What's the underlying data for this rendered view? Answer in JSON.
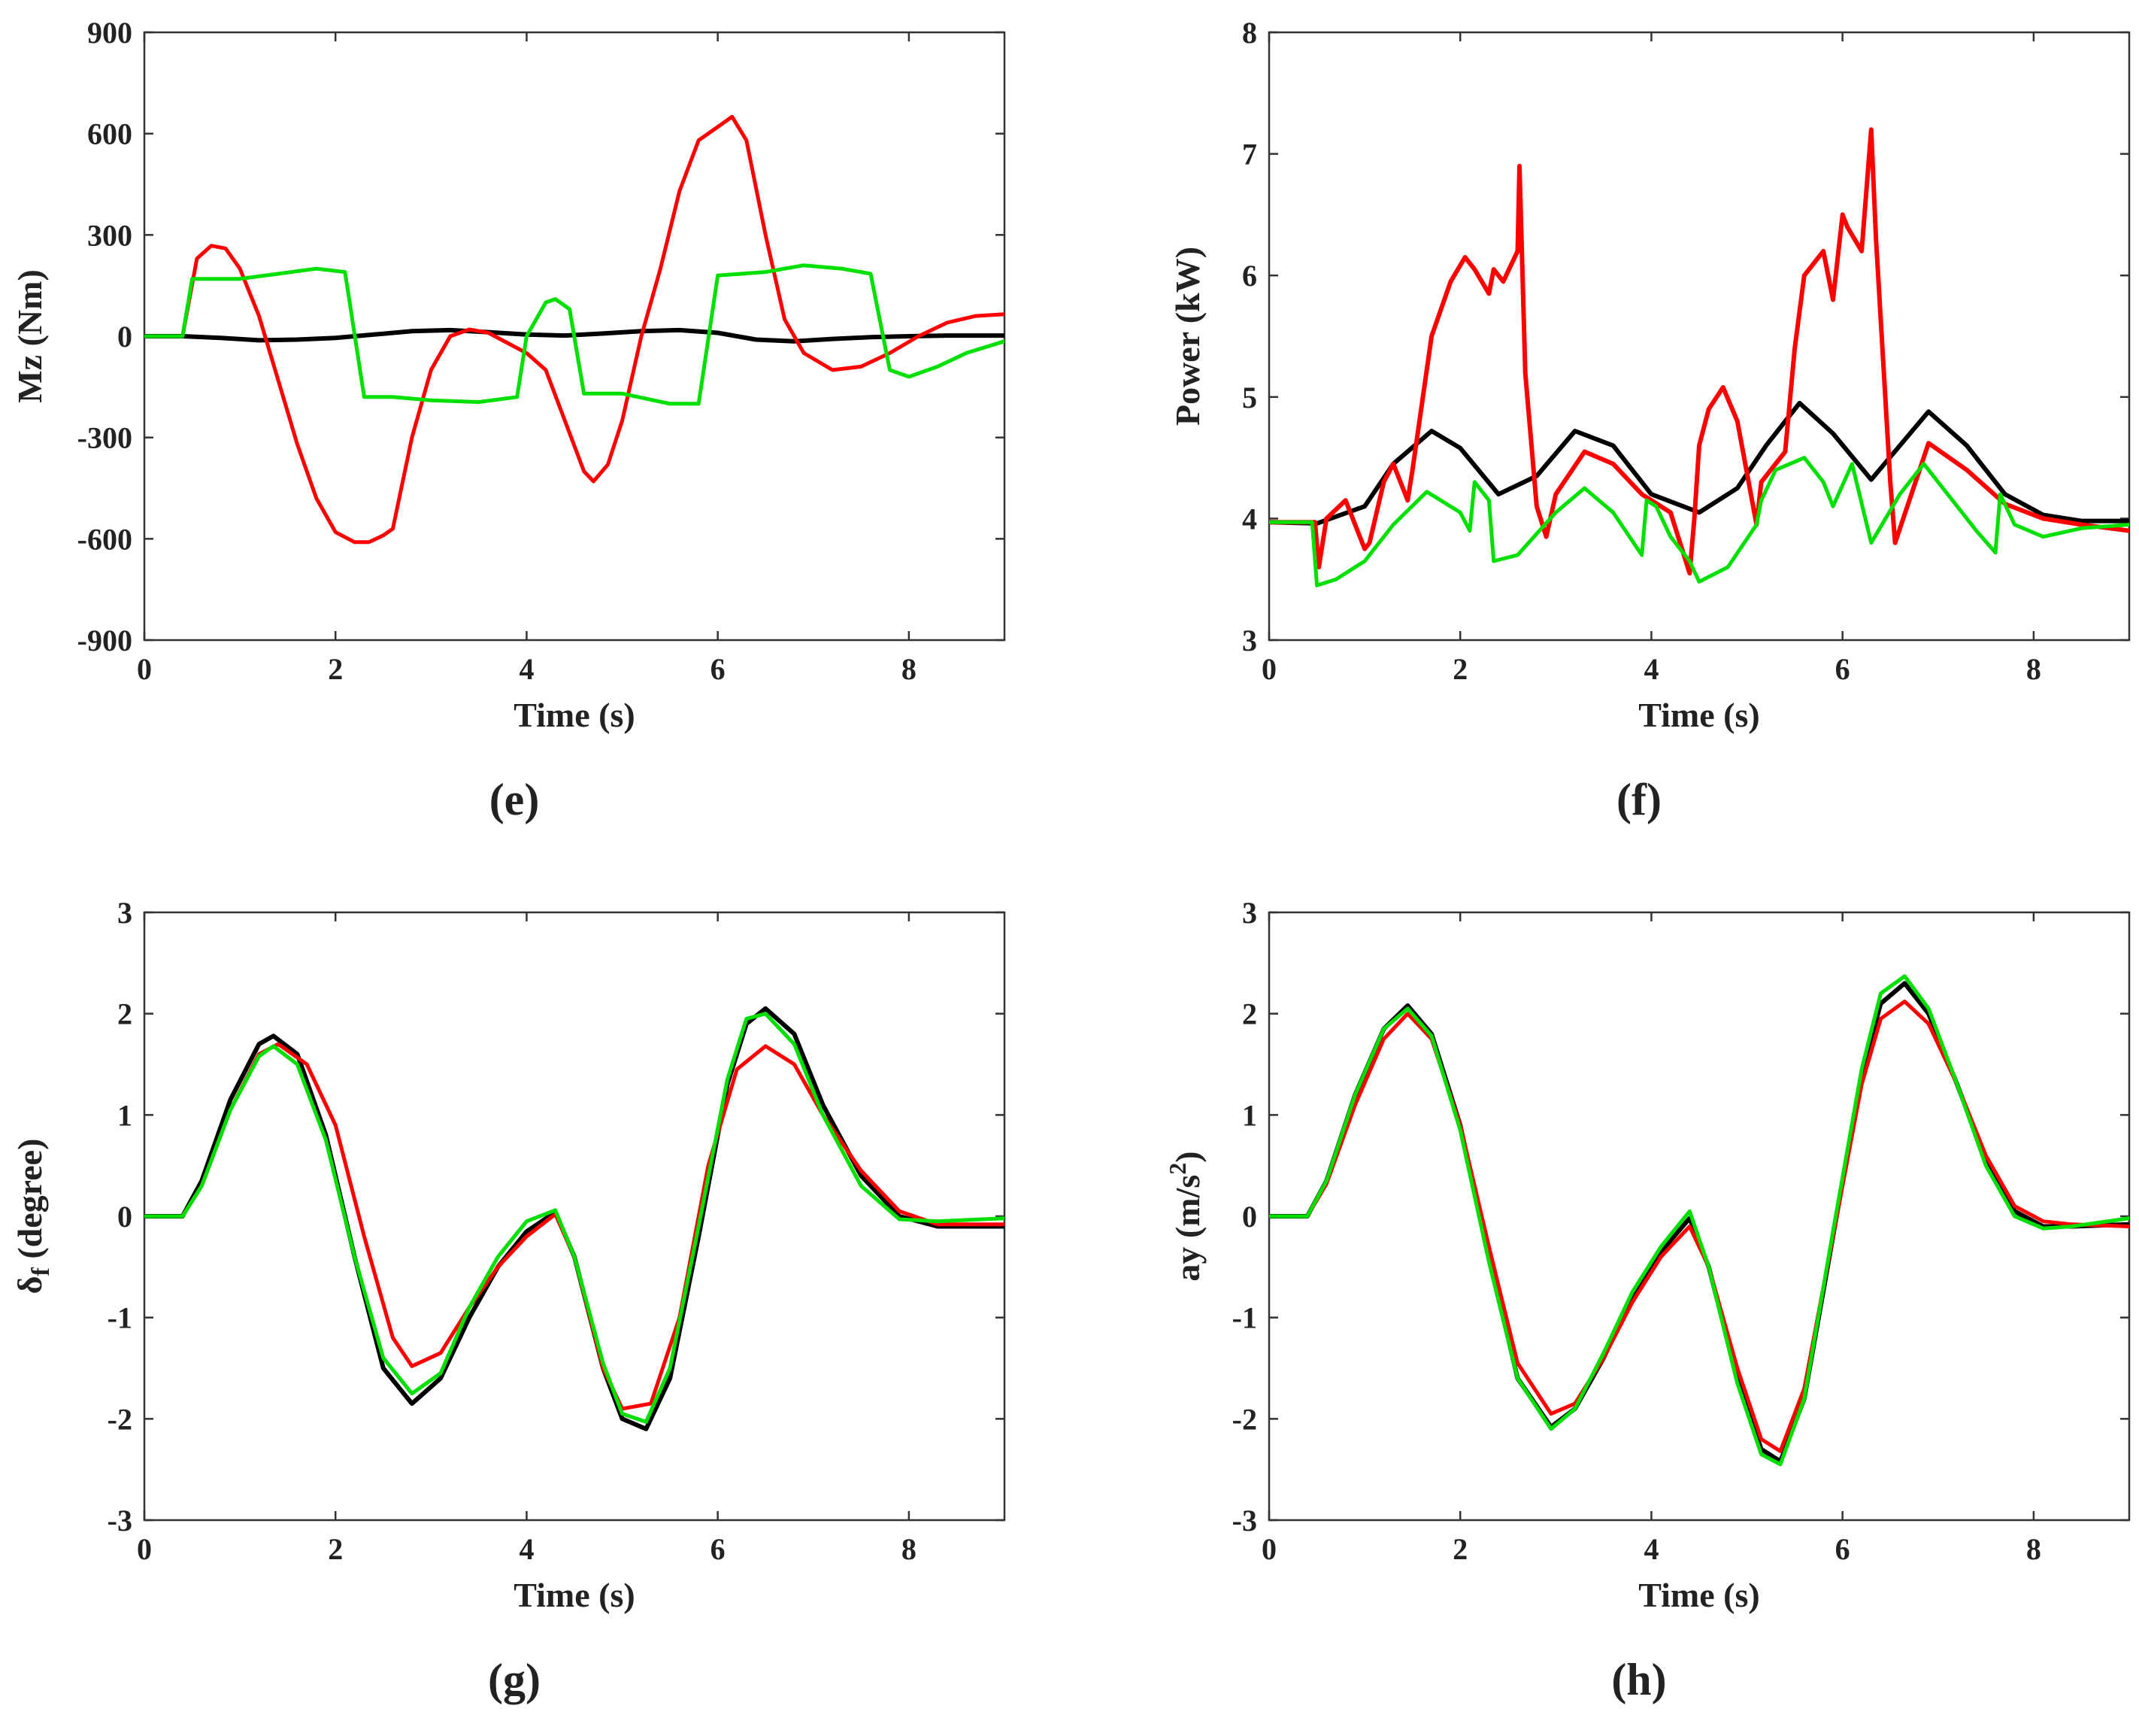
{
  "colors": {
    "black": "#000000",
    "red": "#ff0000",
    "green": "#00e000",
    "axis": "#333333"
  },
  "chart_data": [
    {
      "id": "e",
      "type": "line",
      "caption": "(e)",
      "xlabel": "Time (s)",
      "ylabel": "Mz (Nm)",
      "ylabel_sub": "",
      "ylabel_tail": "",
      "xlim": [
        0,
        9
      ],
      "ylim": [
        -900,
        900
      ],
      "xticks": [
        0,
        2,
        4,
        6,
        8
      ],
      "yticks": [
        -900,
        -600,
        -300,
        0,
        300,
        600,
        900
      ],
      "grid": false,
      "series": [
        {
          "color": "#000000",
          "width": 6,
          "x": [
            0,
            0.4,
            0.8,
            1.2,
            1.6,
            2,
            2.4,
            2.8,
            3.2,
            3.6,
            4,
            4.4,
            4.8,
            5.2,
            5.6,
            6,
            6.4,
            6.8,
            7.2,
            7.6,
            8,
            8.4,
            9
          ],
          "y": [
            0,
            0,
            -5,
            -12,
            -10,
            -5,
            5,
            15,
            18,
            12,
            5,
            2,
            8,
            15,
            18,
            10,
            -10,
            -15,
            -8,
            -3,
            0,
            2,
            2
          ]
        },
        {
          "color": "#ff0000",
          "width": 5,
          "x": [
            0,
            0.4,
            0.55,
            0.7,
            0.85,
            1.0,
            1.2,
            1.4,
            1.6,
            1.8,
            2.0,
            2.2,
            2.35,
            2.5,
            2.6,
            2.8,
            3.0,
            3.2,
            3.4,
            3.6,
            3.8,
            4.0,
            4.2,
            4.4,
            4.6,
            4.7,
            4.85,
            5.0,
            5.2,
            5.4,
            5.6,
            5.8,
            6.0,
            6.15,
            6.3,
            6.5,
            6.7,
            6.9,
            7.2,
            7.5,
            7.8,
            8.1,
            8.4,
            8.7,
            9.0
          ],
          "y": [
            0,
            0,
            230,
            268,
            260,
            200,
            60,
            -130,
            -320,
            -480,
            -580,
            -610,
            -610,
            -590,
            -570,
            -300,
            -100,
            0,
            20,
            10,
            -20,
            -50,
            -100,
            -250,
            -400,
            -430,
            -380,
            -250,
            0,
            200,
            430,
            580,
            620,
            650,
            580,
            300,
            50,
            -50,
            -100,
            -90,
            -50,
            0,
            40,
            60,
            65
          ]
        },
        {
          "color": "#00e000",
          "width": 5,
          "x": [
            0,
            0.4,
            0.5,
            1.0,
            1.4,
            1.8,
            2.1,
            2.3,
            2.6,
            3.0,
            3.5,
            3.9,
            4.0,
            4.2,
            4.3,
            4.45,
            4.6,
            5.0,
            5.5,
            5.8,
            6.0,
            6.5,
            6.9,
            7.3,
            7.6,
            7.8,
            8.0,
            8.3,
            8.6,
            9.0
          ],
          "y": [
            0,
            0,
            170,
            170,
            185,
            200,
            190,
            -180,
            -180,
            -190,
            -195,
            -180,
            0,
            100,
            110,
            80,
            -170,
            -170,
            -200,
            -200,
            180,
            190,
            210,
            200,
            185,
            -100,
            -120,
            -90,
            -50,
            -15
          ]
        }
      ]
    },
    {
      "id": "f",
      "type": "line",
      "caption": "(f)",
      "xlabel": "Time (s)",
      "ylabel": "Power (kW)",
      "ylabel_sub": "",
      "ylabel_tail": "",
      "xlim": [
        0,
        9
      ],
      "ylim": [
        3,
        8
      ],
      "xticks": [
        0,
        2,
        4,
        6,
        8
      ],
      "yticks": [
        3,
        4,
        5,
        6,
        7,
        8
      ],
      "grid": false,
      "series": [
        {
          "color": "#000000",
          "width": 6,
          "x": [
            0,
            0.5,
            1.0,
            1.3,
            1.7,
            2.0,
            2.4,
            2.8,
            3.2,
            3.6,
            4.0,
            4.5,
            4.9,
            5.2,
            5.55,
            5.9,
            6.3,
            6.6,
            6.9,
            7.3,
            7.7,
            8.1,
            8.5,
            9.0
          ],
          "y": [
            3.97,
            3.96,
            4.1,
            4.45,
            4.72,
            4.58,
            4.2,
            4.35,
            4.72,
            4.6,
            4.2,
            4.05,
            4.25,
            4.6,
            4.95,
            4.7,
            4.32,
            4.6,
            4.88,
            4.6,
            4.2,
            4.03,
            3.98,
            3.98
          ]
        },
        {
          "color": "#ff0000",
          "width": 6,
          "x": [
            0,
            0.48,
            0.52,
            0.6,
            0.8,
            1.0,
            1.05,
            1.2,
            1.3,
            1.45,
            1.5,
            1.7,
            1.9,
            2.05,
            2.15,
            2.3,
            2.35,
            2.45,
            2.6,
            2.62,
            2.68,
            2.8,
            2.9,
            3.0,
            3.3,
            3.6,
            3.9,
            4.2,
            4.4,
            4.45,
            4.5,
            4.6,
            4.75,
            4.9,
            5.1,
            5.15,
            5.4,
            5.5,
            5.6,
            5.8,
            5.9,
            6.0,
            6.05,
            6.2,
            6.3,
            6.35,
            6.5,
            6.55,
            6.9,
            7.3,
            7.7,
            8.1,
            8.5,
            9.0
          ],
          "y": [
            3.97,
            3.97,
            3.6,
            4.0,
            4.15,
            3.75,
            3.8,
            4.3,
            4.45,
            4.15,
            4.4,
            5.5,
            5.95,
            6.15,
            6.05,
            5.85,
            6.05,
            5.95,
            6.2,
            6.9,
            5.2,
            4.1,
            3.85,
            4.2,
            4.55,
            4.45,
            4.2,
            4.05,
            3.55,
            4.0,
            4.6,
            4.9,
            5.08,
            4.8,
            3.95,
            4.3,
            4.55,
            5.4,
            6.0,
            6.2,
            5.8,
            6.5,
            6.4,
            6.2,
            7.2,
            6.3,
            4.3,
            3.8,
            4.62,
            4.4,
            4.12,
            4.0,
            3.95,
            3.9
          ]
        },
        {
          "color": "#00e000",
          "width": 5,
          "x": [
            0,
            0.45,
            0.5,
            0.7,
            1.0,
            1.3,
            1.65,
            2.0,
            2.1,
            2.15,
            2.3,
            2.35,
            2.6,
            3.0,
            3.3,
            3.6,
            3.9,
            3.95,
            4.05,
            4.2,
            4.4,
            4.5,
            4.8,
            5.1,
            5.15,
            5.3,
            5.6,
            5.8,
            5.9,
            6.1,
            6.3,
            6.6,
            6.85,
            7.1,
            7.4,
            7.6,
            7.65,
            7.8,
            8.1,
            8.5,
            9.0
          ],
          "y": [
            3.97,
            3.97,
            3.45,
            3.5,
            3.65,
            3.95,
            4.22,
            4.05,
            3.9,
            4.3,
            4.15,
            3.65,
            3.7,
            4.05,
            4.25,
            4.05,
            3.7,
            4.15,
            4.1,
            3.85,
            3.65,
            3.48,
            3.6,
            3.95,
            4.15,
            4.4,
            4.5,
            4.3,
            4.1,
            4.45,
            3.8,
            4.2,
            4.45,
            4.2,
            3.9,
            3.72,
            4.2,
            3.95,
            3.85,
            3.92,
            3.95
          ]
        }
      ]
    },
    {
      "id": "g",
      "type": "line",
      "caption": "(g)",
      "xlabel": "Time (s)",
      "ylabel": "δ",
      "ylabel_sub": "f",
      "ylabel_tail": " (degree)",
      "xlim": [
        0,
        9
      ],
      "ylim": [
        -3,
        3
      ],
      "xticks": [
        0,
        2,
        4,
        6,
        8
      ],
      "yticks": [
        -3,
        -2,
        -1,
        0,
        1,
        2,
        3
      ],
      "grid": false,
      "series": [
        {
          "color": "#000000",
          "width": 6,
          "x": [
            0,
            0.4,
            0.6,
            0.9,
            1.2,
            1.35,
            1.6,
            1.9,
            2.2,
            2.5,
            2.8,
            3.1,
            3.4,
            3.7,
            4.0,
            4.3,
            4.5,
            4.8,
            5.0,
            5.25,
            5.5,
            5.8,
            6.1,
            6.3,
            6.5,
            6.8,
            7.1,
            7.5,
            7.9,
            8.3,
            9.0
          ],
          "y": [
            0,
            0,
            0.35,
            1.15,
            1.7,
            1.78,
            1.6,
            0.8,
            -0.4,
            -1.5,
            -1.85,
            -1.6,
            -1.0,
            -0.5,
            -0.15,
            0.04,
            -0.4,
            -1.5,
            -2.0,
            -2.1,
            -1.6,
            -0.2,
            1.3,
            1.9,
            2.05,
            1.8,
            1.1,
            0.4,
            0.0,
            -0.1,
            -0.1
          ]
        },
        {
          "color": "#ff0000",
          "width": 5,
          "x": [
            0,
            0.4,
            0.6,
            0.9,
            1.2,
            1.4,
            1.7,
            2.0,
            2.3,
            2.6,
            2.8,
            3.1,
            3.4,
            3.7,
            4.0,
            4.3,
            4.5,
            4.8,
            5.0,
            5.3,
            5.6,
            5.9,
            6.2,
            6.5,
            6.8,
            7.1,
            7.5,
            7.9,
            8.3,
            9.0
          ],
          "y": [
            0,
            0,
            0.3,
            1.05,
            1.6,
            1.7,
            1.5,
            0.9,
            -0.2,
            -1.2,
            -1.48,
            -1.35,
            -0.9,
            -0.5,
            -0.2,
            0.02,
            -0.4,
            -1.5,
            -1.9,
            -1.85,
            -1.0,
            0.5,
            1.45,
            1.68,
            1.5,
            1.0,
            0.45,
            0.05,
            -0.08,
            -0.08
          ]
        },
        {
          "color": "#00e000",
          "width": 5,
          "x": [
            0,
            0.4,
            0.6,
            0.9,
            1.2,
            1.35,
            1.6,
            1.9,
            2.2,
            2.5,
            2.8,
            3.1,
            3.4,
            3.7,
            4.0,
            4.3,
            4.5,
            4.8,
            5.0,
            5.25,
            5.5,
            5.8,
            6.1,
            6.3,
            6.5,
            6.8,
            7.1,
            7.5,
            7.9,
            8.3,
            9.0
          ],
          "y": [
            0,
            0,
            0.3,
            1.05,
            1.58,
            1.68,
            1.5,
            0.75,
            -0.4,
            -1.4,
            -1.75,
            -1.55,
            -0.9,
            -0.4,
            -0.05,
            0.06,
            -0.4,
            -1.45,
            -1.95,
            -2.03,
            -1.5,
            -0.1,
            1.35,
            1.95,
            2.0,
            1.7,
            1.0,
            0.3,
            -0.03,
            -0.05,
            -0.02
          ]
        }
      ]
    },
    {
      "id": "h",
      "type": "line",
      "caption": "(h)",
      "xlabel": "Time (s)",
      "ylabel": "ay (m/s",
      "ylabel_sub": "",
      "ylabel_sup": "2",
      "ylabel_tail": ")",
      "xlim": [
        0,
        9
      ],
      "ylim": [
        -3,
        3
      ],
      "xticks": [
        0,
        2,
        4,
        6,
        8
      ],
      "yticks": [
        -3,
        -2,
        -1,
        0,
        1,
        2,
        3
      ],
      "grid": false,
      "series": [
        {
          "color": "#000000",
          "width": 6,
          "x": [
            0,
            0.4,
            0.6,
            0.9,
            1.2,
            1.45,
            1.7,
            2.0,
            2.3,
            2.6,
            2.95,
            3.2,
            3.5,
            3.8,
            4.1,
            4.4,
            4.6,
            4.9,
            5.15,
            5.35,
            5.6,
            5.9,
            6.2,
            6.4,
            6.65,
            6.9,
            7.2,
            7.5,
            7.8,
            8.1,
            8.4,
            9.0
          ],
          "y": [
            0,
            0,
            0.35,
            1.2,
            1.85,
            2.08,
            1.8,
            0.9,
            -0.4,
            -1.6,
            -2.08,
            -1.9,
            -1.4,
            -0.8,
            -0.35,
            -0.02,
            -0.5,
            -1.6,
            -2.3,
            -2.42,
            -1.8,
            -0.2,
            1.4,
            2.1,
            2.3,
            2.0,
            1.3,
            0.55,
            0.05,
            -0.1,
            -0.1,
            -0.08
          ]
        },
        {
          "color": "#ff0000",
          "width": 5,
          "x": [
            0,
            0.4,
            0.6,
            0.9,
            1.2,
            1.45,
            1.7,
            2.0,
            2.3,
            2.6,
            2.95,
            3.2,
            3.5,
            3.8,
            4.1,
            4.4,
            4.6,
            4.9,
            5.15,
            5.35,
            5.6,
            5.9,
            6.2,
            6.4,
            6.65,
            6.9,
            7.2,
            7.5,
            7.8,
            8.1,
            8.4,
            9.0
          ],
          "y": [
            0,
            0,
            0.32,
            1.1,
            1.75,
            2.0,
            1.75,
            0.9,
            -0.3,
            -1.45,
            -1.95,
            -1.85,
            -1.4,
            -0.85,
            -0.4,
            -0.1,
            -0.5,
            -1.5,
            -2.2,
            -2.32,
            -1.7,
            -0.2,
            1.3,
            1.95,
            2.12,
            1.9,
            1.3,
            0.6,
            0.1,
            -0.05,
            -0.08,
            -0.1
          ]
        },
        {
          "color": "#00e000",
          "width": 5,
          "x": [
            0,
            0.4,
            0.6,
            0.9,
            1.2,
            1.45,
            1.7,
            2.0,
            2.3,
            2.6,
            2.95,
            3.2,
            3.5,
            3.8,
            4.1,
            4.4,
            4.6,
            4.9,
            5.15,
            5.35,
            5.6,
            5.9,
            6.2,
            6.4,
            6.65,
            6.9,
            7.2,
            7.5,
            7.8,
            8.1,
            8.4,
            9.0
          ],
          "y": [
            0,
            0,
            0.35,
            1.2,
            1.85,
            2.05,
            1.78,
            0.85,
            -0.45,
            -1.6,
            -2.1,
            -1.9,
            -1.35,
            -0.75,
            -0.3,
            0.05,
            -0.5,
            -1.65,
            -2.35,
            -2.45,
            -1.8,
            -0.15,
            1.45,
            2.2,
            2.37,
            2.05,
            1.3,
            0.5,
            0.0,
            -0.12,
            -0.1,
            -0.02
          ]
        }
      ]
    }
  ]
}
